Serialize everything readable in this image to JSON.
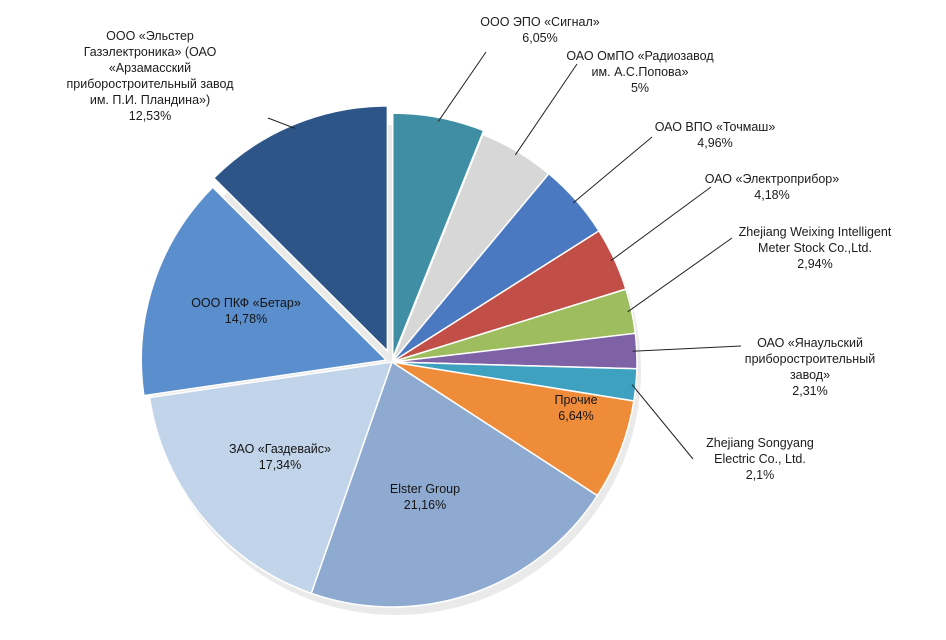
{
  "chart_data": {
    "type": "pie",
    "title": "",
    "start_angle_deg": 90,
    "slices": [
      {
        "key": "signal",
        "label": [
          "ООО ЭПО «Сигнал»",
          "6,05%"
        ],
        "value": 6.05,
        "color": "#3f8ea3"
      },
      {
        "key": "radiozavod",
        "label": [
          "ОАО ОмПО «Радиозавод",
          "им. А.С.Попова»",
          "5%"
        ],
        "value": 5.0,
        "color": "#d7d7d7"
      },
      {
        "key": "tochmash",
        "label": [
          "ОАО ВПО «Точмаш»",
          "4,96%"
        ],
        "value": 4.96,
        "color": "#4a79c1"
      },
      {
        "key": "elektropribor",
        "label": [
          "ОАО «Электроприбор»",
          "4,18%"
        ],
        "value": 4.18,
        "color": "#c24f47"
      },
      {
        "key": "weixing",
        "label": [
          "Zhejiang Weixing Intelligent",
          "Meter Stock Co.,Ltd.",
          "2,94%"
        ],
        "value": 2.94,
        "color": "#9dbd5e"
      },
      {
        "key": "yanaul",
        "label": [
          "ОАО «Янаульский",
          "приборостроительный",
          "завод»",
          "2,31%"
        ],
        "value": 2.31,
        "color": "#7f62a6"
      },
      {
        "key": "songyang",
        "label": [
          "Zhejiang Songyang",
          "Electric Co., Ltd.",
          "2,1%"
        ],
        "value": 2.1,
        "color": "#3fa1c0"
      },
      {
        "key": "prochie",
        "label": [
          "Прочие",
          "6,64%"
        ],
        "value": 6.64,
        "color": "#ef8c3a"
      },
      {
        "key": "elster",
        "label": [
          "Elster Group",
          "21,16%"
        ],
        "value": 21.16,
        "color": "#8eaad0"
      },
      {
        "key": "gazdevais",
        "label": [
          "ЗАО «Газдевайс»",
          "17,34%"
        ],
        "value": 17.34,
        "color": "#c2d4ea"
      },
      {
        "key": "betar",
        "label": [
          "ООО ПКФ «Бетар»",
          "14,78%"
        ],
        "value": 14.78,
        "color": "#5b8ecc"
      },
      {
        "key": "elster_gaz",
        "label": [
          "ООО «Эльстер",
          "Газэлектроника» (ОАО",
          "«Арзамасский",
          "приборостроительный завод",
          "им. П.И. Пландина»)",
          "12,53%"
        ],
        "value": 12.53,
        "color": "#2e5587"
      }
    ]
  }
}
